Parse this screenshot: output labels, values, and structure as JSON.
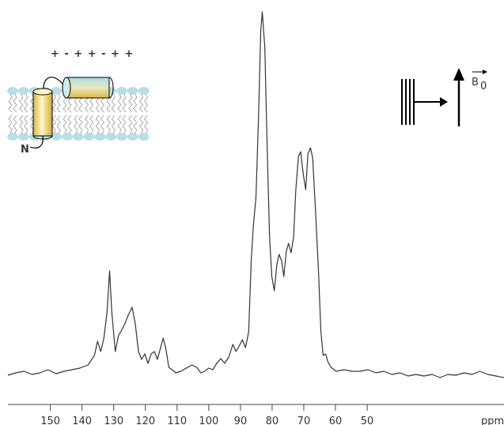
{
  "chart_data": {
    "type": "line",
    "x_label": "ppm",
    "annotations": [
      "+ - + + - + +",
      "N",
      "B",
      "0"
    ],
    "xlim": [
      163.4,
      6.8
    ],
    "ylim": [
      0,
      470
    ],
    "xticks": [
      150,
      140,
      130,
      120,
      110,
      100,
      90,
      80,
      70,
      60,
      50
    ],
    "color": "#333333",
    "x": [
      163.4,
      160.9,
      158.3,
      155.8,
      153.3,
      150.8,
      148.2,
      145.7,
      143.2,
      140.7,
      138.1,
      136.1,
      135.1,
      134.1,
      133.1,
      132.1,
      131.3,
      130.6,
      129.5,
      128.5,
      127.5,
      126.5,
      125.3,
      124.2,
      123.2,
      122.2,
      121.2,
      120.2,
      119.2,
      118.2,
      117.2,
      116.2,
      115.2,
      114.4,
      113.6,
      112.6,
      111.6,
      110.4,
      108.8,
      107.1,
      105.3,
      103.8,
      102.5,
      101.3,
      100.0,
      98.7,
      97.5,
      96.2,
      95.0,
      93.7,
      92.4,
      91.4,
      90.4,
      89.4,
      88.4,
      87.4,
      86.6,
      85.9,
      85.1,
      84.3,
      83.6,
      83.1,
      82.3,
      81.6,
      80.8,
      80.1,
      79.3,
      78.5,
      77.8,
      77.0,
      76.3,
      75.5,
      74.8,
      74.0,
      73.2,
      72.5,
      71.7,
      71.0,
      70.2,
      69.4,
      68.7,
      67.9,
      67.2,
      66.4,
      65.4,
      64.6,
      63.9,
      63.1,
      62.4,
      61.4,
      59.8,
      57.3,
      54.8,
      52.3,
      49.7,
      47.2,
      44.7,
      42.2,
      39.6,
      37.1,
      34.6,
      32.1,
      29.5,
      27.0,
      24.5,
      22.0,
      19.4,
      16.9,
      14.4,
      11.9,
      9.3,
      6.8
    ],
    "values": [
      3,
      6,
      8,
      4,
      6,
      10,
      5,
      8,
      10,
      12,
      16,
      28,
      46,
      33,
      50,
      83,
      135,
      83,
      33,
      53,
      60,
      68,
      80,
      89,
      68,
      33,
      23,
      30,
      18,
      30,
      33,
      23,
      38,
      50,
      38,
      13,
      10,
      6,
      8,
      12,
      16,
      13,
      6,
      8,
      12,
      10,
      18,
      24,
      18,
      26,
      42,
      33,
      40,
      48,
      38,
      58,
      148,
      193,
      228,
      328,
      438,
      463,
      418,
      298,
      178,
      128,
      110,
      143,
      156,
      148,
      128,
      160,
      170,
      158,
      178,
      238,
      280,
      286,
      258,
      238,
      283,
      291,
      278,
      218,
      138,
      58,
      28,
      30,
      20,
      13,
      8,
      10,
      8,
      8,
      10,
      6,
      8,
      4,
      6,
      2,
      4,
      2,
      4,
      0,
      4,
      3,
      6,
      4,
      8,
      4,
      2,
      0
    ]
  }
}
